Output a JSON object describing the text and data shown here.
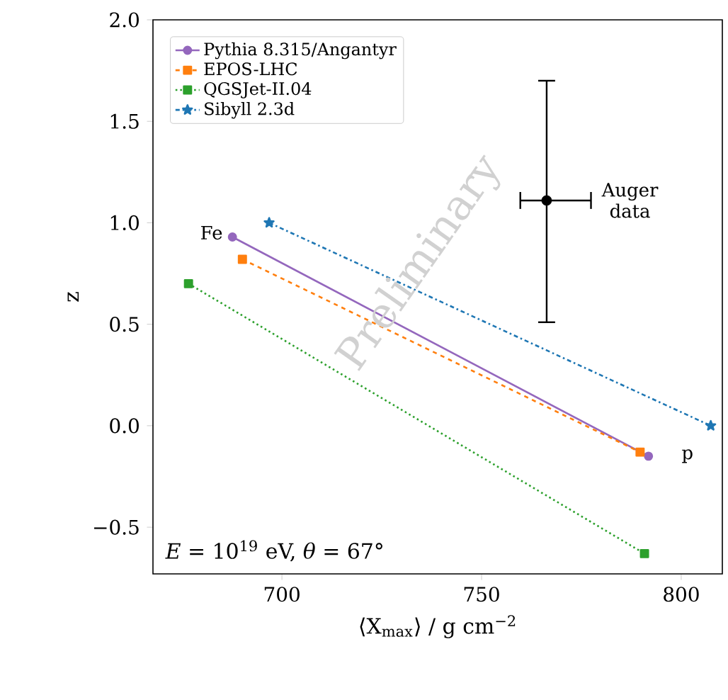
{
  "chart_data": {
    "type": "line",
    "xlabel": "⟨X$_{max}$⟩ / g cm$^{−2}$",
    "ylabel": "z",
    "xlim": [
      667.7,
      810.3
    ],
    "ylim": [
      -0.73,
      2.0
    ],
    "xticks": [
      700,
      750,
      800
    ],
    "yticks": [
      {
        "value": -0.5,
        "label": "−0.5"
      },
      {
        "value": 0,
        "label": "0.0"
      },
      {
        "value": 0.5,
        "label": "0.5"
      },
      {
        "value": 1,
        "label": "1.0"
      },
      {
        "value": 1.5,
        "label": "1.5"
      },
      {
        "value": 2,
        "label": "2.0"
      }
    ],
    "legend": "top left",
    "series": [
      {
        "name": "Pythia 8.315/Angantyr",
        "color": "#9467bd",
        "line_style": "solid",
        "marker": "circle",
        "x": [
          687.6,
          791.8
        ],
        "values": [
          0.93,
          -0.15
        ]
      },
      {
        "name": "EPOS-LHC",
        "color": "#ff7f0e",
        "line_style": "dashed",
        "marker": "square",
        "x": [
          690.1,
          789.7
        ],
        "values": [
          0.82,
          -0.13
        ]
      },
      {
        "name": "QGSJet-II.04",
        "color": "#2ca02c",
        "line_style": "dotted",
        "marker": "square",
        "x": [
          676.6,
          790.8
        ],
        "values": [
          0.7,
          -0.63
        ]
      },
      {
        "name": "Sibyll 2.3d",
        "color": "#1f77b4",
        "line_style": "dashdot",
        "marker": "star",
        "x": [
          696.8,
          807.4
        ],
        "values": [
          1.0,
          0.0
        ]
      },
      {
        "color": "#000000",
        "type": "scatter",
        "marker": "circle",
        "x": [
          766.3
        ],
        "values": [
          1.11
        ],
        "errors": [
          [
            0.51,
            1.7
          ]
        ],
        "xerrors": [
          [
            759.7,
            777.4
          ]
        ]
      }
    ],
    "annotations": [
      {
        "text": "Fe",
        "x": 687.6,
        "y": 0.93
      },
      {
        "text": "p",
        "x": 791.8,
        "y": -0.15
      },
      {
        "text": "Auger data",
        "x": 777.4,
        "y": 1.11
      },
      "*E* = 10$^{19}$ eV, *θ* = 67°",
      "Preliminary"
    ]
  }
}
